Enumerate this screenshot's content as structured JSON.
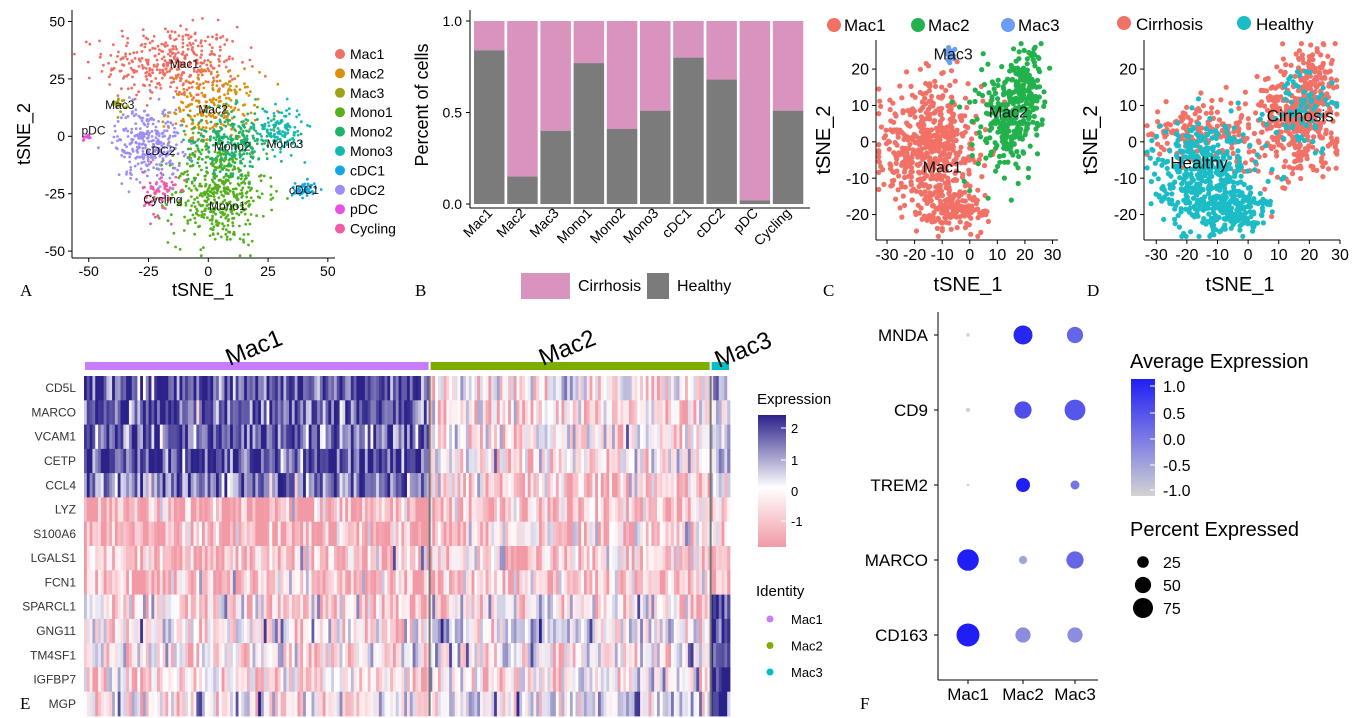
{
  "panel_letters": [
    "A",
    "B",
    "C",
    "D",
    "E",
    "F"
  ],
  "colors": {
    "Mac1": "#ef6f63",
    "Mac2": "#d9900d",
    "Mac3": "#9fa21a",
    "Mono1": "#56b01e",
    "Mono2": "#1fb26a",
    "Mono3": "#14b9b0",
    "cDC1": "#14a8e3",
    "cDC2": "#9a8ff2",
    "pDC": "#eb50e3",
    "Cycling": "#f25aa5",
    "cirrhosis": "#dc94bd",
    "healthy": "#7f7f7f",
    "pinkB": "#d993bf",
    "greyB": "#7b7b7b",
    "macC2": "#22b14c",
    "macC3": "#6a9ef5",
    "cirrD": "#f27166",
    "healthyD": "#1bbcc5",
    "heatHigh": "#2b2289",
    "heatLow": "#f19aa6",
    "idMac1": "#c77cff",
    "idMac2": "#7cae00",
    "idMac3": "#00bfc4",
    "dotHigh": "#1f1ff5",
    "dotLow": "#d3d3d3"
  },
  "chart_data": [
    {
      "panel": "A",
      "type": "scatter",
      "xlabel": "tSNE_1",
      "ylabel": "tSNE_2",
      "xticks": [
        "-50",
        "-25",
        "0",
        "25",
        "50"
      ],
      "yticks": [
        "50",
        "25",
        "0",
        "-25",
        "-50"
      ],
      "xlim": [
        -57,
        53
      ],
      "ylim": [
        -53,
        55
      ],
      "legend": [
        "Mac1",
        "Mac2",
        "Mac3",
        "Mono1",
        "Mono2",
        "Mono3",
        "cDC1",
        "cDC2",
        "pDC",
        "Cycling"
      ],
      "clusters": [
        {
          "name": "Mac1",
          "cx": -15,
          "cy": 32,
          "sx": 14,
          "sy": 8,
          "n": 380
        },
        {
          "name": "Mac2",
          "cx": 2,
          "cy": 12,
          "sx": 9,
          "sy": 8,
          "n": 230
        },
        {
          "name": "Mac3",
          "cx": -37,
          "cy": 14,
          "sx": 1.5,
          "sy": 1.5,
          "n": 20
        },
        {
          "name": "Mono1",
          "cx": 4,
          "cy": -25,
          "sx": 10,
          "sy": 11,
          "n": 480
        },
        {
          "name": "Mono2",
          "cx": 10,
          "cy": -2,
          "sx": 9,
          "sy": 7,
          "n": 280
        },
        {
          "name": "Mono3",
          "cx": 30,
          "cy": 3,
          "sx": 5,
          "sy": 5,
          "n": 120
        },
        {
          "name": "cDC1",
          "cx": 40,
          "cy": -23,
          "sx": 2.5,
          "sy": 1.8,
          "n": 45
        },
        {
          "name": "cDC2",
          "cx": -25,
          "cy": -3,
          "sx": 7,
          "sy": 8,
          "n": 300
        },
        {
          "name": "pDC",
          "cx": -51,
          "cy": -1,
          "sx": 1,
          "sy": 1.2,
          "n": 12
        },
        {
          "name": "Cycling",
          "cx": -20,
          "cy": -25,
          "sx": 3.5,
          "sy": 5,
          "n": 70
        }
      ],
      "labels": [
        {
          "text": "Mac1",
          "x": -10,
          "y": 32
        },
        {
          "text": "Mac2",
          "x": 2,
          "y": 12
        },
        {
          "text": "Mac3",
          "x": -37,
          "y": 14
        },
        {
          "text": "pDC",
          "x": -48,
          "y": 3
        },
        {
          "text": "cDC2",
          "x": -20,
          "y": -6
        },
        {
          "text": "Mono2",
          "x": 10,
          "y": -4
        },
        {
          "text": "Mono3",
          "x": 32,
          "y": -3
        },
        {
          "text": "cDC1",
          "x": 40,
          "y": -23
        },
        {
          "text": "Cycling",
          "x": -19,
          "y": -27
        },
        {
          "text": "Mono1",
          "x": 8,
          "y": -30
        }
      ]
    },
    {
      "panel": "B",
      "type": "bar",
      "stacked": true,
      "ylabel": "Percent of cells",
      "yticks": [
        "1.0",
        "0.5",
        "0.0"
      ],
      "ylim": [
        0,
        1
      ],
      "categories": [
        "Mac1",
        "Mac2",
        "Mac3",
        "Mono1",
        "Mono2",
        "Mono3",
        "cDC1",
        "cDC2",
        "pDC",
        "Cycling"
      ],
      "series": [
        {
          "name": "Cirrhosis",
          "values": [
            0.16,
            0.85,
            0.6,
            0.23,
            0.59,
            0.49,
            0.2,
            0.32,
            0.98,
            0.49
          ]
        },
        {
          "name": "Healthy",
          "values": [
            0.84,
            0.15,
            0.4,
            0.77,
            0.41,
            0.51,
            0.8,
            0.68,
            0.02,
            0.51
          ]
        }
      ]
    },
    {
      "panel": "C",
      "type": "scatter",
      "xlabel": "tSNE_1",
      "ylabel": "tSNE_2",
      "xticks": [
        "-30",
        "-20",
        "-10",
        "0",
        "10",
        "20",
        "30"
      ],
      "yticks": [
        "20",
        "10",
        "0",
        "-10",
        "-20"
      ],
      "xlim": [
        -34,
        32
      ],
      "ylim": [
        -27,
        28
      ],
      "legend": [
        "Mac1",
        "Mac2",
        "Mac3"
      ],
      "clusters": [
        {
          "name": "Mac1",
          "cx": -14,
          "cy": -1,
          "sx": 9,
          "sy": 9,
          "n": 520
        },
        {
          "name": "Mac1",
          "cx": -6,
          "cy": -19,
          "sx": 6,
          "sy": 3,
          "n": 150
        },
        {
          "name": "Mac2",
          "cx": 14,
          "cy": 6,
          "sx": 6,
          "sy": 7,
          "n": 260
        },
        {
          "name": "Mac2",
          "cx": 20,
          "cy": 17,
          "sx": 3,
          "sy": 5,
          "n": 110
        },
        {
          "name": "Mac3",
          "cx": -6,
          "cy": 24,
          "sx": 1.2,
          "sy": 1.2,
          "n": 16
        }
      ],
      "labels": [
        {
          "text": "Mac3",
          "x": -6,
          "y": 24
        },
        {
          "text": "Mac2",
          "x": 14,
          "y": 8
        },
        {
          "text": "Mac1",
          "x": -10,
          "y": -7
        }
      ]
    },
    {
      "panel": "D",
      "type": "scatter",
      "xlabel": "tSNE_1",
      "ylabel": "tSNE_2",
      "xticks": [
        "-30",
        "-20",
        "-10",
        "0",
        "10",
        "20",
        "30"
      ],
      "yticks": [
        "20",
        "10",
        "0",
        "-10",
        "-20"
      ],
      "xlim": [
        -34,
        30
      ],
      "ylim": [
        -27,
        28
      ],
      "legend": [
        "Cirrhosis",
        "Healthy"
      ],
      "clusters": [
        {
          "name": "Cirrhosis",
          "cx": 15,
          "cy": 7,
          "sx": 7,
          "sy": 8,
          "n": 380
        },
        {
          "name": "Cirrhosis",
          "cx": 22,
          "cy": 16,
          "sx": 3,
          "sy": 5,
          "n": 100
        },
        {
          "name": "Cirrhosis",
          "cx": -16,
          "cy": 2,
          "sx": 8,
          "sy": 4,
          "n": 180
        },
        {
          "name": "Healthy",
          "cx": -14,
          "cy": -9,
          "sx": 8,
          "sy": 7,
          "n": 420
        },
        {
          "name": "Healthy",
          "cx": -4,
          "cy": -19,
          "sx": 6,
          "sy": 3,
          "n": 150
        },
        {
          "name": "Healthy",
          "cx": 18,
          "cy": 10,
          "sx": 5,
          "sy": 7,
          "n": 70
        }
      ],
      "labels": [
        {
          "text": "Cirrhosis",
          "x": 17,
          "y": 7
        },
        {
          "text": "Healthy",
          "x": -16,
          "y": -6
        }
      ]
    },
    {
      "panel": "E",
      "type": "heatmap",
      "legend_title": "Expression",
      "legend_ticks": [
        "2",
        "1",
        "0",
        "-1"
      ],
      "identity_title": "Identity",
      "identity": [
        "Mac1",
        "Mac2",
        "Mac3"
      ],
      "groups": [
        {
          "name": "Mac1",
          "fraction": 0.535
        },
        {
          "name": "Mac2",
          "fraction": 0.435
        },
        {
          "name": "Mac3",
          "fraction": 0.03
        }
      ],
      "genes": [
        "CD5L",
        "MARCO",
        "VCAM1",
        "CETP",
        "CCL4",
        "LYZ",
        "S100A6",
        "LGALS1",
        "FCN1",
        "SPARCL1",
        "GNG11",
        "TM4SF1",
        "IGFBP7",
        "MGP"
      ],
      "mean_expression": [
        [
          1.8,
          -0.2,
          0.8
        ],
        [
          1.6,
          -0.5,
          0.5
        ],
        [
          1.5,
          -0.3,
          0.6
        ],
        [
          1.7,
          -0.2,
          0.8
        ],
        [
          1.3,
          -0.6,
          0.4
        ],
        [
          -1.1,
          -0.7,
          -0.6
        ],
        [
          -1.0,
          -0.6,
          -0.7
        ],
        [
          -0.9,
          -0.6,
          -0.8
        ],
        [
          -0.8,
          -0.6,
          -0.8
        ],
        [
          -0.4,
          -0.1,
          2.2
        ],
        [
          -0.1,
          0.3,
          2.2
        ],
        [
          -0.2,
          0.1,
          2.0
        ],
        [
          -0.3,
          0.1,
          2.2
        ],
        [
          -0.2,
          0.4,
          2.1
        ]
      ]
    },
    {
      "panel": "F",
      "type": "scatter",
      "subtype": "dotplot",
      "x": [
        "Mac1",
        "Mac2",
        "Mac3"
      ],
      "genes": [
        "MNDA",
        "CD9",
        "TREM2",
        "MARCO",
        "CD163"
      ],
      "avg_expression": [
        [
          -1.1,
          1.1,
          0.3
        ],
        [
          -1.1,
          0.6,
          0.5
        ],
        [
          -1.1,
          1.2,
          0.1
        ],
        [
          1.2,
          -0.5,
          0.3
        ],
        [
          1.2,
          -0.2,
          -0.2
        ]
      ],
      "pct_expressed": [
        [
          2,
          55,
          40
        ],
        [
          3,
          45,
          65
        ],
        [
          1,
          30,
          12
        ],
        [
          70,
          10,
          45
        ],
        [
          80,
          35,
          35
        ]
      ],
      "color_legend_title": "Average Expression",
      "color_ticks": [
        "1.0",
        "0.5",
        "0.0",
        "-0.5",
        "-1.0"
      ],
      "size_legend_title": "Percent Expressed",
      "size_ticks": [
        "25",
        "50",
        "75"
      ]
    }
  ]
}
